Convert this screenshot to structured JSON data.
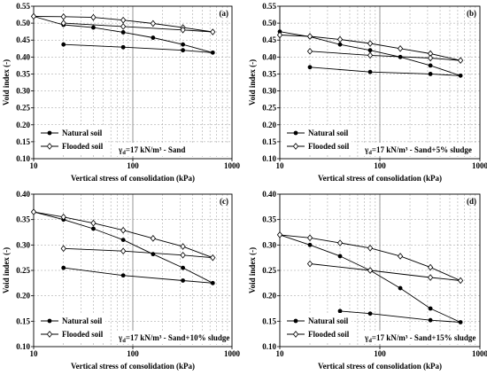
{
  "chart_data": [
    {
      "type": "line",
      "panel_label": "(a)",
      "xlabel": "Vertical stress of consolidation (kPa)",
      "ylabel": "Void index (-)",
      "x_scale": "log",
      "xlim": [
        10,
        1000
      ],
      "ylim": [
        0.1,
        0.55
      ],
      "x_ticks": [
        "10",
        "100",
        "1000"
      ],
      "y_ticks": [
        "0.10",
        "0.15",
        "0.20",
        "0.25",
        "0.30",
        "0.35",
        "0.40",
        "0.45",
        "0.50",
        "0.55"
      ],
      "grid": true,
      "legend_position": "bottom-left",
      "annotation_prefix": "γ",
      "annotation_sub": "d",
      "annotation_suffix": "=17 kN/m³ - Sand",
      "series": [
        {
          "name": "Natural soil",
          "marker": "filled-circle",
          "x": [
            10,
            20,
            40,
            80,
            160,
            320,
            640,
            320,
            80,
            20
          ],
          "y": [
            0.52,
            0.495,
            0.487,
            0.473,
            0.457,
            0.437,
            0.413,
            0.42,
            0.429,
            0.437
          ]
        },
        {
          "name": "Flooded soil",
          "marker": "open-diamond",
          "x": [
            10,
            20,
            40,
            80,
            160,
            320,
            640,
            320,
            80,
            20
          ],
          "y": [
            0.52,
            0.519,
            0.517,
            0.509,
            0.499,
            0.487,
            0.474,
            0.48,
            0.49,
            0.5
          ]
        }
      ]
    },
    {
      "type": "line",
      "panel_label": "(b)",
      "xlabel": "Vertical stress of consolidation (kPa)",
      "ylabel": "Void index (-)",
      "x_scale": "log",
      "xlim": [
        10,
        1000
      ],
      "ylim": [
        0.1,
        0.55
      ],
      "x_ticks": [
        "10",
        "100",
        "1000"
      ],
      "y_ticks": [
        "0.10",
        "0.15",
        "0.20",
        "0.25",
        "0.30",
        "0.35",
        "0.40",
        "0.45",
        "0.50",
        "0.55"
      ],
      "grid": true,
      "legend_position": "bottom-left",
      "annotation_prefix": "γ",
      "annotation_sub": "d",
      "annotation_suffix": "=17 kN/m³ - Sand+5% sludge",
      "series": [
        {
          "name": "Natural soil",
          "marker": "filled-circle",
          "x": [
            10,
            20,
            40,
            80,
            160,
            320,
            640,
            320,
            80,
            20
          ],
          "y": [
            0.475,
            0.46,
            0.437,
            0.42,
            0.4,
            0.375,
            0.345,
            0.35,
            0.356,
            0.37
          ]
        },
        {
          "name": "Flooded soil",
          "marker": "open-diamond",
          "x": [
            10,
            20,
            40,
            80,
            160,
            320,
            640,
            320,
            80,
            20
          ],
          "y": [
            0.465,
            0.461,
            0.452,
            0.44,
            0.425,
            0.41,
            0.39,
            0.397,
            0.405,
            0.417
          ]
        }
      ]
    },
    {
      "type": "line",
      "panel_label": "(c)",
      "xlabel": "Vertical stress of consolidation (kPa)",
      "ylabel": "Void index (-)",
      "x_scale": "log",
      "xlim": [
        10,
        1000
      ],
      "ylim": [
        0.1,
        0.4
      ],
      "x_ticks": [
        "10",
        "100",
        "1000"
      ],
      "y_ticks": [
        "0.10",
        "0.15",
        "0.20",
        "0.25",
        "0.30",
        "0.35",
        "0.40"
      ],
      "grid": true,
      "legend_position": "bottom-left",
      "annotation_prefix": "γ",
      "annotation_sub": "d",
      "annotation_suffix": "=17 kN/m³ - Sand+10% sludge",
      "series": [
        {
          "name": "Natural soil",
          "marker": "filled-circle",
          "x": [
            10,
            20,
            40,
            80,
            160,
            320,
            640,
            320,
            80,
            20
          ],
          "y": [
            0.365,
            0.35,
            0.332,
            0.31,
            0.282,
            0.255,
            0.225,
            0.23,
            0.24,
            0.255
          ]
        },
        {
          "name": "Flooded soil",
          "marker": "open-diamond",
          "x": [
            10,
            20,
            40,
            80,
            160,
            320,
            640,
            320,
            80,
            20
          ],
          "y": [
            0.365,
            0.355,
            0.343,
            0.329,
            0.313,
            0.297,
            0.275,
            0.28,
            0.288,
            0.293
          ]
        }
      ]
    },
    {
      "type": "line",
      "panel_label": "(d)",
      "xlabel": "Vertical stress of consolidation (kPa)",
      "ylabel": "Void index (-)",
      "x_scale": "log",
      "xlim": [
        10,
        1000
      ],
      "ylim": [
        0.1,
        0.4
      ],
      "x_ticks": [
        "10",
        "100",
        "1000"
      ],
      "y_ticks": [
        "0.10",
        "0.15",
        "0.20",
        "0.25",
        "0.30",
        "0.35",
        "0.40"
      ],
      "grid": true,
      "legend_position": "bottom-left",
      "annotation_prefix": "γ",
      "annotation_sub": "d",
      "annotation_suffix": "=17 kN/m³ - Sand+15% sludge",
      "series": [
        {
          "name": "Natural soil",
          "marker": "filled-circle",
          "x": [
            10,
            20,
            40,
            80,
            160,
            320,
            640,
            320,
            80,
            40
          ],
          "y": [
            0.32,
            0.3,
            0.278,
            0.25,
            0.215,
            0.175,
            0.148,
            0.152,
            0.165,
            0.17
          ]
        },
        {
          "name": "Flooded soil",
          "marker": "open-diamond",
          "x": [
            10,
            20,
            40,
            80,
            160,
            320,
            640,
            320,
            80,
            20
          ],
          "y": [
            0.32,
            0.314,
            0.304,
            0.294,
            0.278,
            0.256,
            0.23,
            0.236,
            0.25,
            0.263
          ]
        }
      ]
    }
  ]
}
